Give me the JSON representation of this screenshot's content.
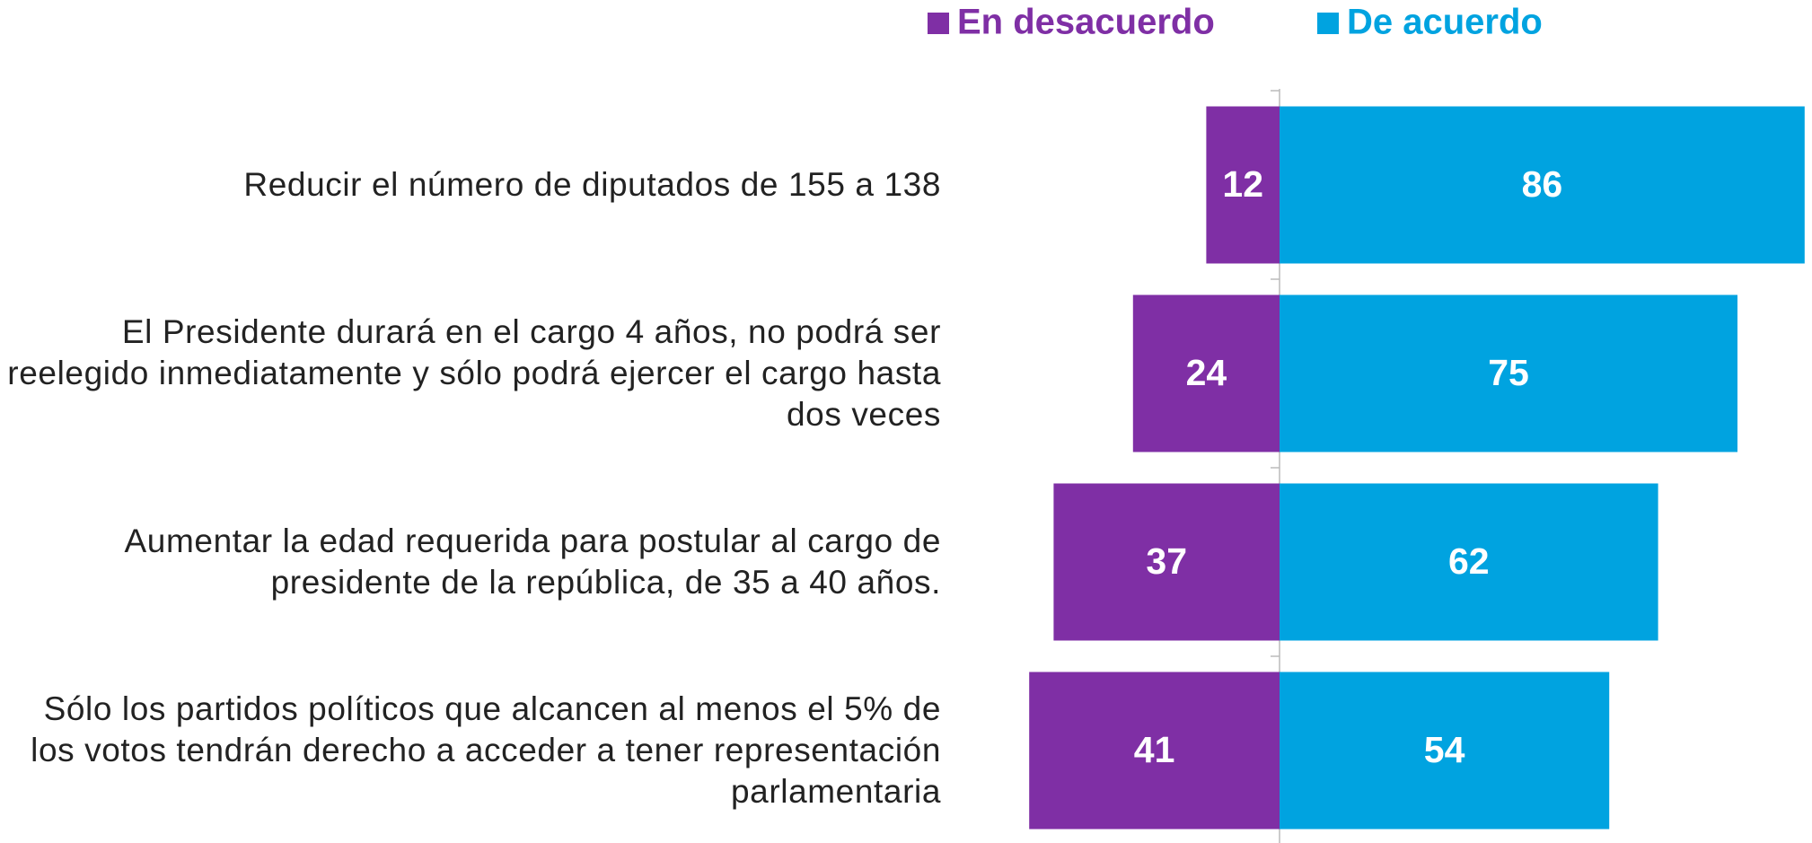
{
  "chart_data": {
    "type": "diverging-bar",
    "categories": [
      "Reducir el número de diputados de 155 a 138",
      "El Presidente durará en el cargo 4 años, no podrá ser reelegido inmediatamente y sólo podrá ejercer el cargo hasta dos veces",
      "Aumentar la edad requerida para postular al cargo de presidente de la república, de 35 a 40 años.",
      "Sólo los partidos políticos que alcancen al menos el 5% de los votos tendrán derecho a acceder a tener representación parlamentaria"
    ],
    "series": [
      {
        "name": "En desacuerdo",
        "color": "#7f2fa5",
        "values": [
          12,
          24,
          37,
          41
        ]
      },
      {
        "name": "De acuerdo",
        "color": "#00a3e0",
        "values": [
          86,
          75,
          62,
          54
        ]
      }
    ]
  }
}
